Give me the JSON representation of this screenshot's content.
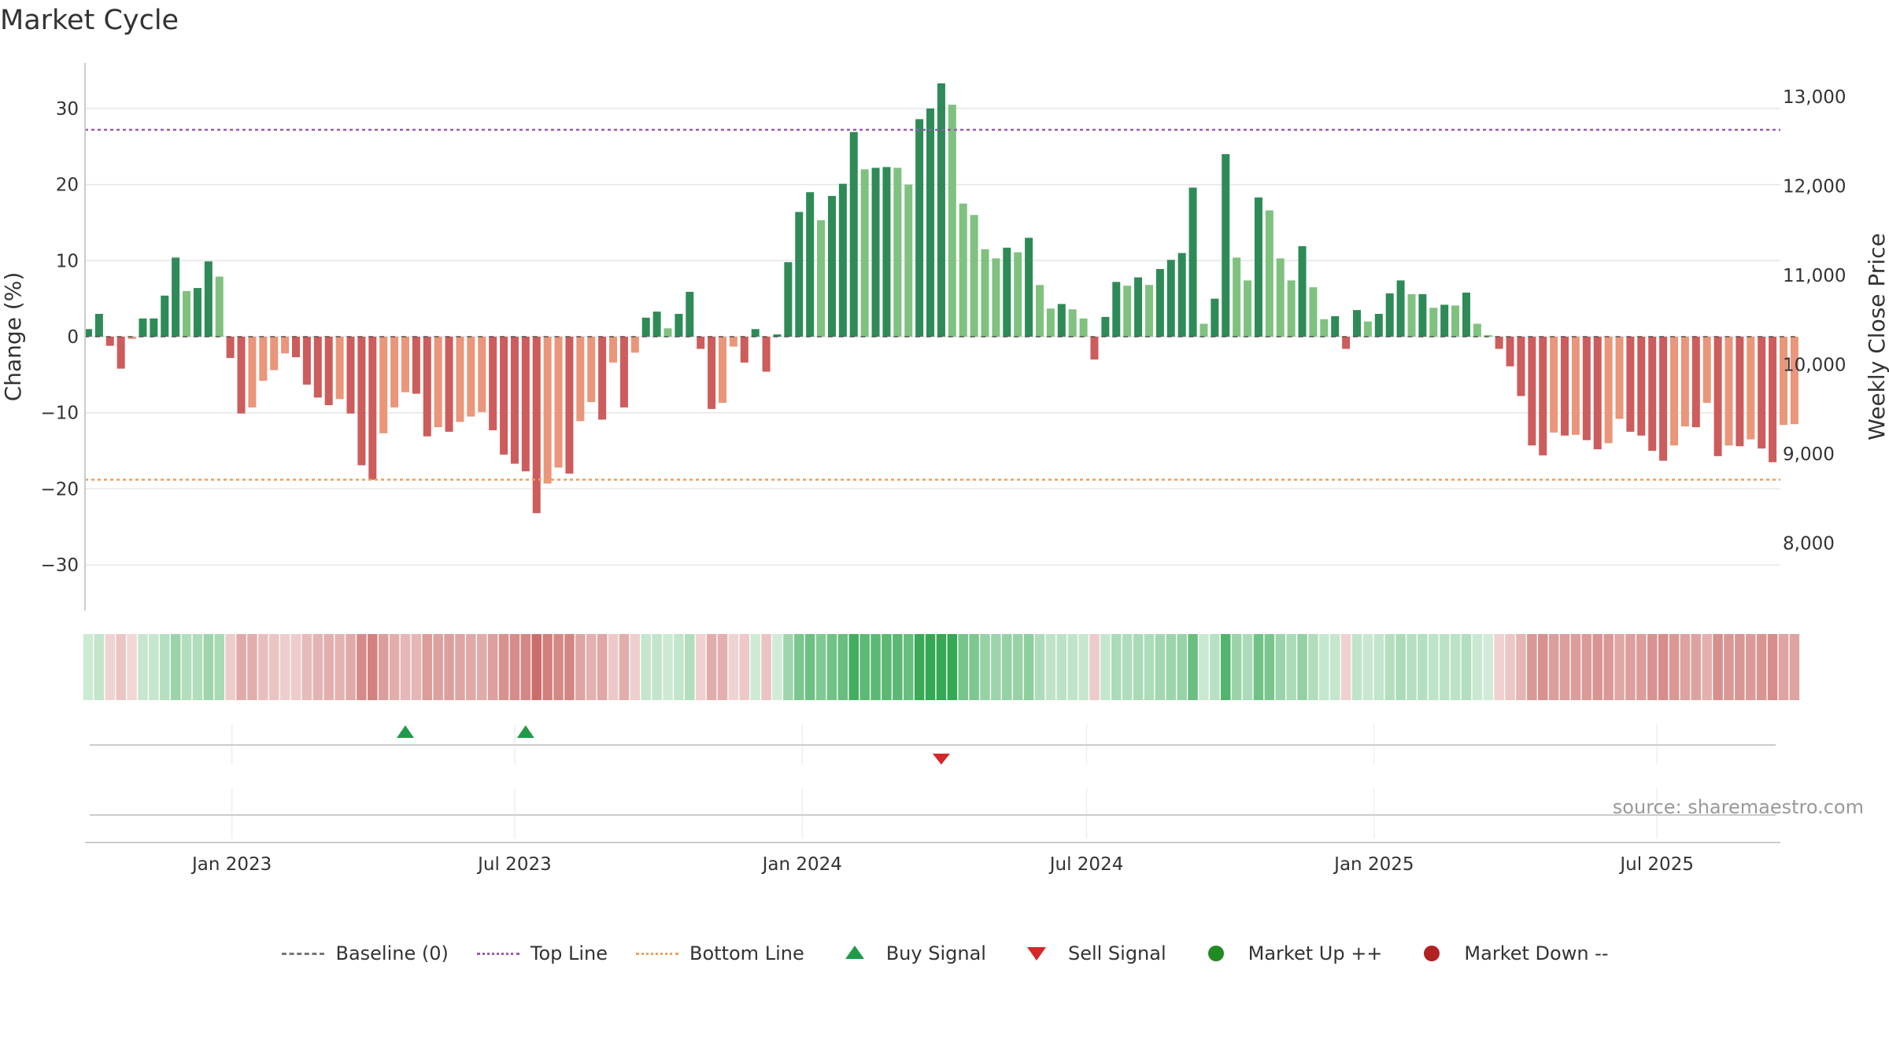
{
  "colors": {
    "up_dark": "#2e8b57",
    "up_light": "#7fc27f",
    "down_dark": "#cd5c5c",
    "down_light": "#e9967a",
    "top_line": "#9b59b6",
    "bottom_line": "#f0a05a",
    "buy": "#1f9a4a",
    "sell": "#d62728",
    "market_up": "#228b22",
    "market_down": "#b22222"
  },
  "title": "Market Cycle",
  "source": "source: sharemaestro.com",
  "legend": [
    {
      "label": "Baseline (0)",
      "icon": "dash-line"
    },
    {
      "label": "Top Line",
      "icon": "purple-dotted-line"
    },
    {
      "label": "Bottom Line",
      "icon": "orange-dotted-line"
    },
    {
      "label": "Buy Signal",
      "icon": "green-triangle-up"
    },
    {
      "label": "Sell Signal",
      "icon": "red-triangle-down"
    },
    {
      "label": "Market Up ++",
      "icon": "green-dot"
    },
    {
      "label": "Market Down --",
      "icon": "red-dot"
    }
  ],
  "chart_data": {
    "type": "bar",
    "xlabel": "",
    "ylabel": "Change (%)",
    "y2label": "Weekly Close Price",
    "ylim": [
      -36,
      36
    ],
    "y_ticks": [
      30,
      20,
      10,
      0,
      -10,
      -20,
      -30
    ],
    "y_tick_labels": [
      "30",
      "20",
      "10",
      "0",
      "−10",
      "−20",
      "−30"
    ],
    "y2_ticks": [
      "13,000",
      "12,000",
      "11,000",
      "10,000",
      "9,000",
      "8,000"
    ],
    "x_start": "2022-09-29",
    "x_end": "2025-09-18",
    "x_ticks": [
      {
        "date": "2023-01-01",
        "label": "Jan 2023"
      },
      {
        "date": "2023-07-01",
        "label": "Jul 2023"
      },
      {
        "date": "2024-01-01",
        "label": "Jan 2024"
      },
      {
        "date": "2024-07-01",
        "label": "Jul 2024"
      },
      {
        "date": "2025-01-01",
        "label": "Jan 2025"
      },
      {
        "date": "2025-07-01",
        "label": "Jul 2025"
      }
    ],
    "top_line": 27.2,
    "bottom_line": -18.8,
    "baseline": 0,
    "start_week": "2022-10-01",
    "values": [
      1.0,
      3.0,
      -1.2,
      -4.2,
      -0.3,
      2.4,
      2.4,
      5.4,
      10.4,
      6.0,
      6.4,
      9.9,
      7.9,
      -2.8,
      -10.1,
      -9.3,
      -5.8,
      -4.4,
      -2.2,
      -2.7,
      -6.3,
      -8.0,
      -9.0,
      -8.2,
      -10.1,
      -16.9,
      -18.8,
      -12.7,
      -9.3,
      -7.3,
      -7.5,
      -13.1,
      -11.9,
      -12.5,
      -11.2,
      -10.5,
      -9.9,
      -12.3,
      -15.5,
      -16.7,
      -17.7,
      -23.2,
      -19.3,
      -17.2,
      -18.0,
      -11.1,
      -8.6,
      -10.9,
      -3.4,
      -9.3,
      -2.1,
      2.5,
      3.3,
      1.1,
      3.0,
      5.9,
      -1.6,
      -9.5,
      -8.7,
      -1.3,
      -3.4,
      1.0,
      -4.6,
      0.3,
      9.8,
      16.4,
      19.0,
      15.3,
      18.5,
      20.1,
      26.9,
      22.0,
      22.2,
      22.3,
      22.2,
      20.0,
      28.6,
      30.0,
      33.3,
      30.5,
      17.5,
      16.0,
      11.5,
      10.3,
      11.7,
      11.1,
      13.0,
      6.8,
      3.7,
      4.3,
      3.6,
      2.4,
      -3.0,
      2.6,
      7.2,
      6.7,
      7.8,
      6.8,
      8.9,
      10.1,
      11.0,
      19.6,
      1.7,
      5.0,
      24.0,
      10.4,
      7.4,
      18.3,
      16.6,
      10.3,
      7.4,
      11.9,
      6.5,
      2.3,
      2.7,
      -1.6,
      3.5,
      2.0,
      3.0,
      5.7,
      7.4,
      5.6,
      5.6,
      3.8,
      4.2,
      4.1,
      5.8,
      1.7,
      0.2,
      -1.6,
      -3.9,
      -7.8,
      -14.3,
      -15.6,
      -12.6,
      -13.0,
      -12.9,
      -13.6,
      -14.8,
      -14.0,
      -10.8,
      -12.5,
      -13.0,
      -15.0,
      -16.3,
      -14.3,
      -11.8,
      -11.9,
      -8.7,
      -15.7,
      -14.3,
      -14.4,
      -13.5,
      -14.7,
      -16.5,
      -11.6,
      -11.5
    ],
    "buy_signals": [
      "2023-04-22",
      "2023-07-08"
    ],
    "sell_signals": [
      "2024-03-30"
    ]
  }
}
